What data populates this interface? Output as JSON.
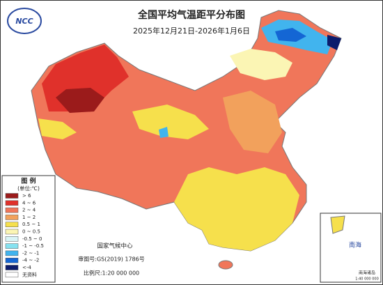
{
  "title": "全国平均气温距平分布图",
  "subtitle": "2025年12月21日-2026年1月6日",
  "logo": {
    "text": "NCC"
  },
  "legend": {
    "title": "图 例",
    "unit": "(单位:℃)",
    "items": [
      {
        "label": "> 6",
        "color": "#9b1b1b"
      },
      {
        "label": "4 ~ 6",
        "color": "#e0312b"
      },
      {
        "label": "2 ~ 4",
        "color": "#f0765a"
      },
      {
        "label": "1 ~ 2",
        "color": "#f2a15c"
      },
      {
        "label": "0.5 ~ 1",
        "color": "#f6e04c"
      },
      {
        "label": "0 ~ 0.5",
        "color": "#fbf5b4"
      },
      {
        "label": "-0.5 ~ 0",
        "color": "#d9f4f6"
      },
      {
        "label": "-1 ~ -0.5",
        "color": "#86e2f0"
      },
      {
        "label": "-2 ~ -1",
        "color": "#41b4ee"
      },
      {
        "label": "-4 ~ -2",
        "color": "#1466d4"
      },
      {
        "label": "<-4",
        "color": "#0c1c6c"
      },
      {
        "label": "无资料",
        "color": "#ffffff"
      }
    ]
  },
  "footer": {
    "org": "国家气候中心",
    "approval": "审图号:GS(2019) 1786号",
    "scale": "比例尺:1:20 000 000"
  },
  "inset": {
    "label": "南海",
    "caption": "南海诸岛",
    "scale": "1:40 000 000"
  }
}
